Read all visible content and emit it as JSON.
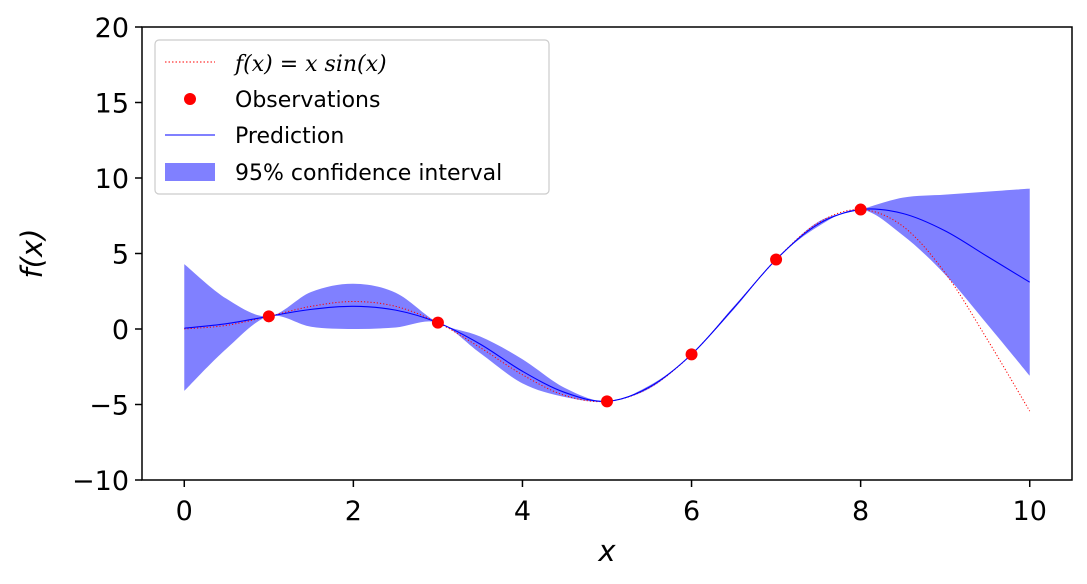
{
  "chart_data": {
    "type": "line",
    "title": "",
    "xlabel": "x",
    "ylabel": "f(x)",
    "xlim": [
      -0.5,
      10.5
    ],
    "ylim": [
      -10,
      20
    ],
    "xticks": [
      0,
      2,
      4,
      6,
      8,
      10
    ],
    "xtick_labels": [
      "0",
      "2",
      "4",
      "6",
      "8",
      "10"
    ],
    "yticks": [
      -10,
      -5,
      0,
      5,
      10,
      15,
      20
    ],
    "ytick_labels": [
      "−10",
      "−5",
      "0",
      "5",
      "10",
      "15",
      "20"
    ],
    "grid": false,
    "legend_position": "top-left",
    "legend": [
      {
        "label": "f(x) = x sin(x)",
        "style": "dotted-line",
        "color": "#ff0000"
      },
      {
        "label": "Observations",
        "style": "marker",
        "color": "#ff0000"
      },
      {
        "label": "Prediction",
        "style": "line",
        "color": "#0000ff"
      },
      {
        "label": "95% confidence interval",
        "style": "patch",
        "color": "#8080ff"
      }
    ],
    "observations": {
      "x": [
        1,
        3,
        5,
        6,
        7,
        8
      ],
      "y": [
        0.84,
        0.42,
        -4.79,
        -1.68,
        4.6,
        7.91
      ]
    },
    "series": [
      {
        "name": "f(x) = x sin(x)",
        "x": [
          0,
          0.5,
          1,
          1.5,
          2,
          2.5,
          3,
          3.5,
          4,
          4.5,
          5,
          5.5,
          6,
          6.5,
          7,
          7.5,
          8,
          8.5,
          9,
          9.5,
          10
        ],
        "y": [
          0,
          0.24,
          0.84,
          1.5,
          1.82,
          1.5,
          0.42,
          -1.23,
          -3.03,
          -4.4,
          -4.79,
          -3.89,
          -1.68,
          1.41,
          4.6,
          7.04,
          7.91,
          6.8,
          3.71,
          -0.71,
          -5.44
        ]
      },
      {
        "name": "Prediction",
        "x": [
          0,
          0.5,
          1,
          1.5,
          2,
          2.5,
          3,
          3.5,
          4,
          4.5,
          5,
          5.5,
          6,
          6.5,
          7,
          7.5,
          8,
          8.5,
          9,
          9.5,
          10
        ],
        "y": [
          0.05,
          0.35,
          0.84,
          1.3,
          1.5,
          1.25,
          0.42,
          -1.0,
          -2.8,
          -4.2,
          -4.79,
          -3.85,
          -1.68,
          1.4,
          4.6,
          6.95,
          7.91,
          7.65,
          6.5,
          4.8,
          3.1
        ]
      }
    ],
    "confidence_interval": {
      "label": "95% confidence interval",
      "x": [
        0,
        0.5,
        1,
        1.5,
        2,
        2.5,
        3,
        3.5,
        4,
        4.5,
        5,
        5.5,
        6,
        6.5,
        7,
        7.5,
        8,
        8.5,
        9,
        9.5,
        10
      ],
      "lower": [
        -4.1,
        -1.3,
        0.84,
        0.15,
        0.0,
        0.1,
        0.42,
        -1.6,
        -3.6,
        -4.5,
        -4.79,
        -3.95,
        -1.68,
        1.3,
        4.6,
        6.8,
        7.91,
        6.2,
        3.6,
        0.3,
        -3.1
      ],
      "upper": [
        4.3,
        2.0,
        0.84,
        2.45,
        3.0,
        2.4,
        0.42,
        -0.5,
        -2.0,
        -3.9,
        -4.79,
        -3.75,
        -1.68,
        1.5,
        4.6,
        7.1,
        7.91,
        8.7,
        8.9,
        9.1,
        9.3
      ]
    },
    "colors": {
      "function": "#ff0000",
      "observation": "#ff0000",
      "prediction": "#0000ff",
      "ci_fill": "#8080ff"
    }
  }
}
